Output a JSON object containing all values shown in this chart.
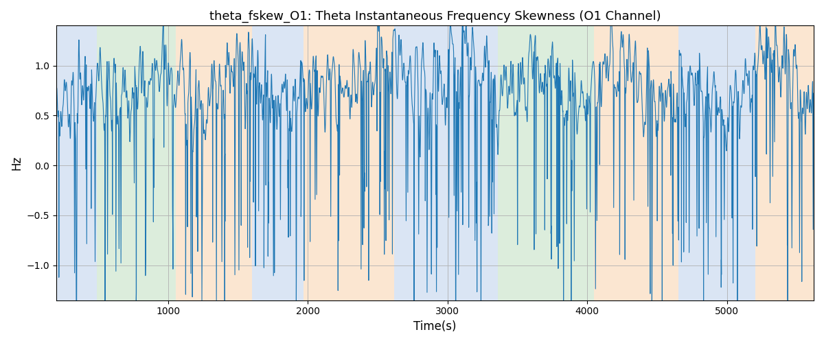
{
  "title": "theta_fskew_O1: Theta Instantaneous Frequency Skewness (O1 Channel)",
  "xlabel": "Time(s)",
  "ylabel": "Hz",
  "xlim": [
    200,
    5620
  ],
  "ylim": [
    -1.35,
    1.4
  ],
  "xticks": [
    1000,
    2000,
    3000,
    4000,
    5000
  ],
  "yticks": [
    -1.0,
    -0.5,
    0.0,
    0.5,
    1.0
  ],
  "line_color": "#1f77b4",
  "line_width": 0.8,
  "bg_regions": [
    {
      "xmin": 200,
      "xmax": 490,
      "color": "#aec6e8",
      "alpha": 0.45
    },
    {
      "xmin": 490,
      "xmax": 1055,
      "color": "#b2d8b2",
      "alpha": 0.45
    },
    {
      "xmin": 1055,
      "xmax": 1600,
      "color": "#f7c99a",
      "alpha": 0.45
    },
    {
      "xmin": 1600,
      "xmax": 1970,
      "color": "#aec6e8",
      "alpha": 0.45
    },
    {
      "xmin": 1970,
      "xmax": 2620,
      "color": "#f7c99a",
      "alpha": 0.45
    },
    {
      "xmin": 2620,
      "xmax": 3360,
      "color": "#aec6e8",
      "alpha": 0.45
    },
    {
      "xmin": 3360,
      "xmax": 4050,
      "color": "#b2d8b2",
      "alpha": 0.45
    },
    {
      "xmin": 4050,
      "xmax": 4650,
      "color": "#f7c99a",
      "alpha": 0.45
    },
    {
      "xmin": 4650,
      "xmax": 5200,
      "color": "#aec6e8",
      "alpha": 0.45
    },
    {
      "xmin": 5200,
      "xmax": 5620,
      "color": "#f7c99a",
      "alpha": 0.45
    }
  ],
  "seed": 42,
  "n_points": 5420,
  "t_start": 200,
  "t_end": 5620
}
